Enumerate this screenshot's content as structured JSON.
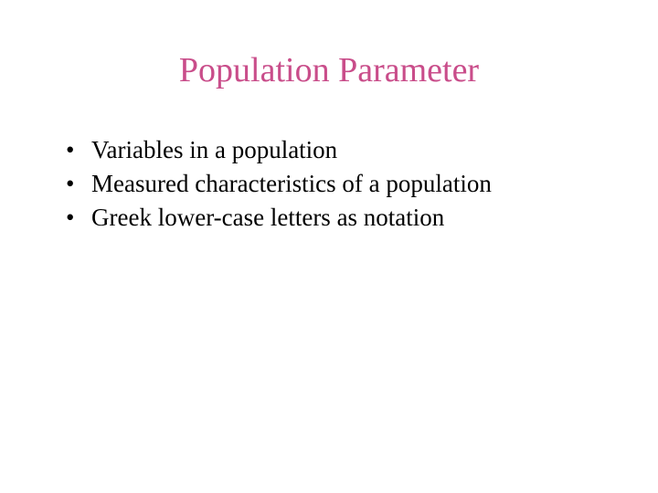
{
  "slide": {
    "title": "Population Parameter",
    "title_color": "#c94d8a",
    "title_fontsize": 38,
    "title_fontweight": "normal",
    "bullets": [
      "Variables in a population",
      "Measured characteristics of a population",
      "Greek lower-case letters as notation"
    ],
    "bullet_color": "#000000",
    "bullet_fontsize": 27,
    "background_color": "#ffffff",
    "font_family": "Times New Roman"
  }
}
